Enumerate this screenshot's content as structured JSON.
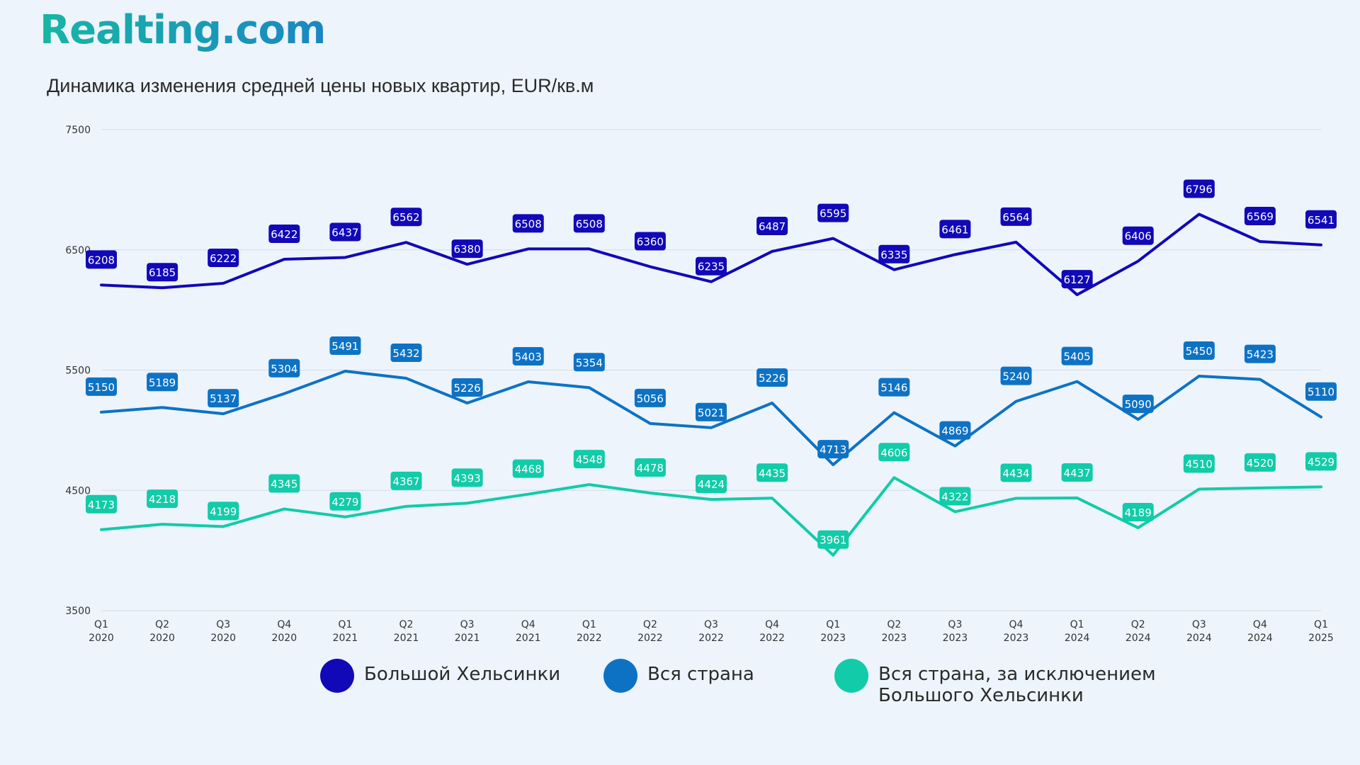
{
  "brand": {
    "logo_text": "Realting.com"
  },
  "chart_data": {
    "type": "line",
    "title": "Динамика изменения средней цены новых квартир, EUR/кв.м",
    "xlabel": "",
    "ylabel": "",
    "ylim": [
      3500,
      7500
    ],
    "yticks": [
      3500,
      4500,
      5500,
      6500,
      7500
    ],
    "grid": true,
    "legend_position": "bottom",
    "categories": [
      [
        "Q1",
        "2020"
      ],
      [
        "Q2",
        "2020"
      ],
      [
        "Q3",
        "2020"
      ],
      [
        "Q4",
        "2020"
      ],
      [
        "Q1",
        "2021"
      ],
      [
        "Q2",
        "2021"
      ],
      [
        "Q3",
        "2021"
      ],
      [
        "Q4",
        "2021"
      ],
      [
        "Q1",
        "2022"
      ],
      [
        "Q2",
        "2022"
      ],
      [
        "Q3",
        "2022"
      ],
      [
        "Q4",
        "2022"
      ],
      [
        "Q1",
        "2023"
      ],
      [
        "Q2",
        "2023"
      ],
      [
        "Q3",
        "2023"
      ],
      [
        "Q4",
        "2023"
      ],
      [
        "Q1",
        "2024"
      ],
      [
        "Q2",
        "2024"
      ],
      [
        "Q3",
        "2024"
      ],
      [
        "Q4",
        "2024"
      ],
      [
        "Q1",
        "2025"
      ]
    ],
    "series": [
      {
        "name": "Большой Хельсинки",
        "color": "#1108b8",
        "values": [
          6208,
          6185,
          6222,
          6422,
          6437,
          6562,
          6380,
          6508,
          6508,
          6360,
          6235,
          6487,
          6595,
          6335,
          6461,
          6564,
          6127,
          6406,
          6796,
          6569,
          6541
        ]
      },
      {
        "name": "Вся страна",
        "color": "#0e72c4",
        "values": [
          5150,
          5189,
          5137,
          5304,
          5491,
          5432,
          5226,
          5403,
          5354,
          5056,
          5021,
          5226,
          4713,
          5146,
          4869,
          5240,
          5405,
          5090,
          5450,
          5423,
          5110
        ]
      },
      {
        "name": "Вся страна, за исключением\nБольшого Хельсинки",
        "color": "#12cba9",
        "values": [
          4173,
          4218,
          4199,
          4345,
          4279,
          4367,
          4393,
          4468,
          4548,
          4478,
          4424,
          4435,
          3961,
          4606,
          4322,
          4434,
          4437,
          4189,
          4510,
          4520,
          4529
        ]
      }
    ]
  }
}
